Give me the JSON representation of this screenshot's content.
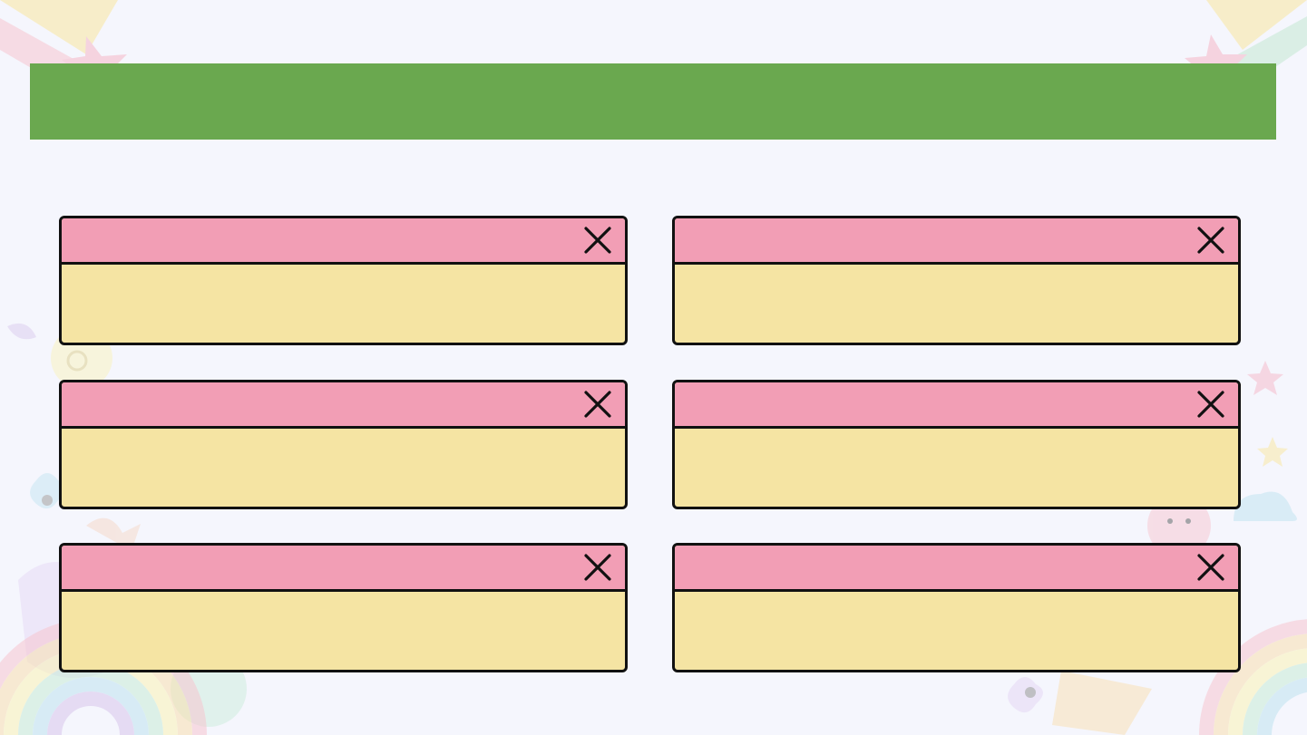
{
  "slide": {
    "title": "",
    "banner_color": "#6aa84f",
    "titlebar_color": "#f29eb5",
    "body_color": "#f5e4a3",
    "background_color": "#f5f6fd"
  },
  "windows": [
    {
      "close_icon": "close-icon",
      "text": ""
    },
    {
      "close_icon": "close-icon",
      "text": ""
    },
    {
      "close_icon": "close-icon",
      "text": ""
    },
    {
      "close_icon": "close-icon",
      "text": ""
    },
    {
      "close_icon": "close-icon",
      "text": ""
    },
    {
      "close_icon": "close-icon",
      "text": ""
    }
  ]
}
